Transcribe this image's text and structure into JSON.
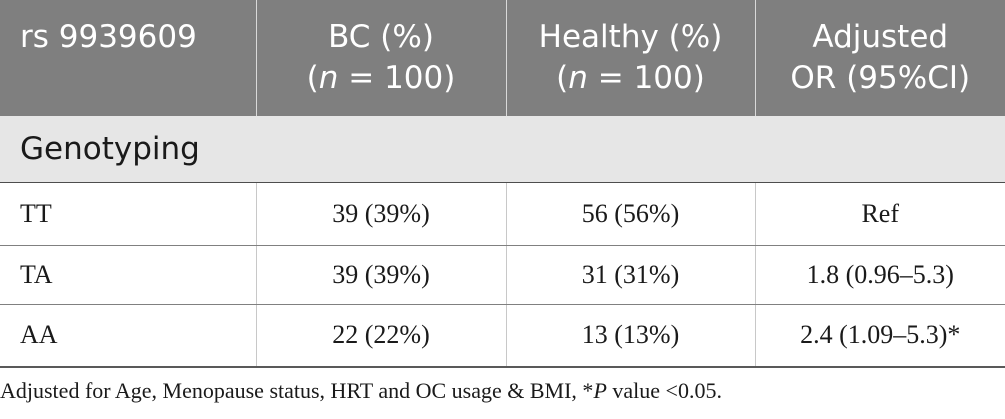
{
  "header": {
    "col1": "rs 9939609",
    "col2_line1": "BC (%)",
    "col2_n": "n",
    "col2_rest": " = 100)",
    "col3_line1": "Healthy (%)",
    "col3_n": "n",
    "col3_rest": " = 100)",
    "col4_line1": "Adjusted",
    "col4_line2": "OR (95%CI)",
    "open_paren": "("
  },
  "section": {
    "label": "Genotyping"
  },
  "rows": [
    {
      "genotype": "TT",
      "bc": "39 (39%)",
      "healthy": "56 (56%)",
      "or": "Ref"
    },
    {
      "genotype": "TA",
      "bc": "39 (39%)",
      "healthy": "31 (31%)",
      "or": "1.8 (0.96–5.3)"
    },
    {
      "genotype": "AA",
      "bc": "22 (22%)",
      "healthy": "13 (13%)",
      "or": "2.4 (1.09–5.3)*"
    }
  ],
  "footnote": {
    "before": "Adjusted for Age, Menopause status, HRT and OC usage & BMI, *",
    "p": "P",
    "after": " value <0.05."
  }
}
